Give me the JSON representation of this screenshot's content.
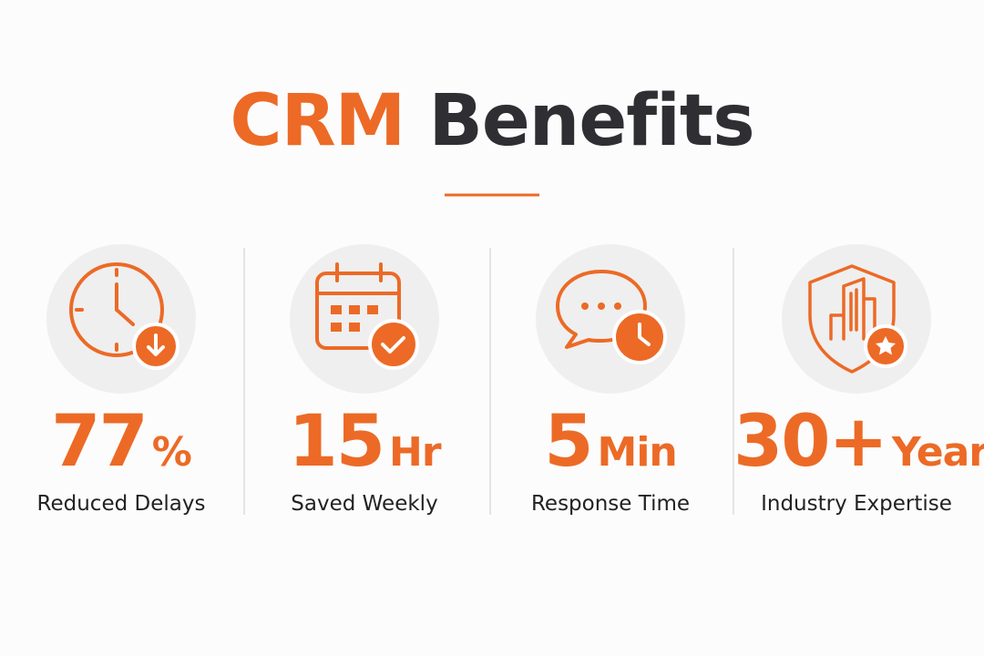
{
  "title": {
    "accent": "CRM",
    "rest": "Benefits"
  },
  "stats": [
    {
      "value": "77",
      "unit": "%",
      "label": "Reduced Delays"
    },
    {
      "value": "15",
      "unit": "Hr",
      "label": "Saved Weekly"
    },
    {
      "value": "5",
      "unit": "Min",
      "label": "Response Time"
    },
    {
      "value": "30+",
      "unit": "Years",
      "label": "Industry Expertise"
    }
  ]
}
